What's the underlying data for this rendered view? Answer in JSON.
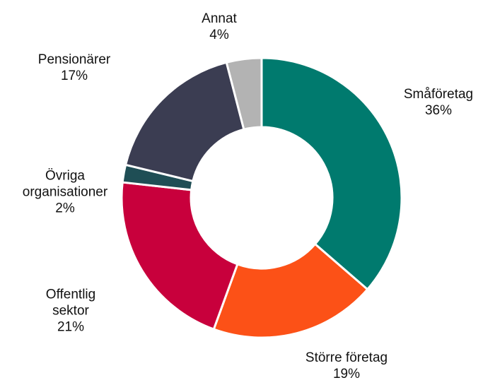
{
  "chart_data": {
    "type": "donut",
    "categories": [
      "Småföretag",
      "Större företag",
      "Offentlig\nsektor",
      "Övriga\norganisationer",
      "Pensionärer",
      "Annat"
    ],
    "values": [
      36,
      19,
      21,
      2,
      17,
      4
    ],
    "value_labels": [
      "36%",
      "19%",
      "21%",
      "2%",
      "17%",
      "4%"
    ],
    "colors": [
      "#007a6e",
      "#fc5117",
      "#c8003c",
      "#1f4e55",
      "#3b3d52",
      "#b3b3b3"
    ]
  }
}
